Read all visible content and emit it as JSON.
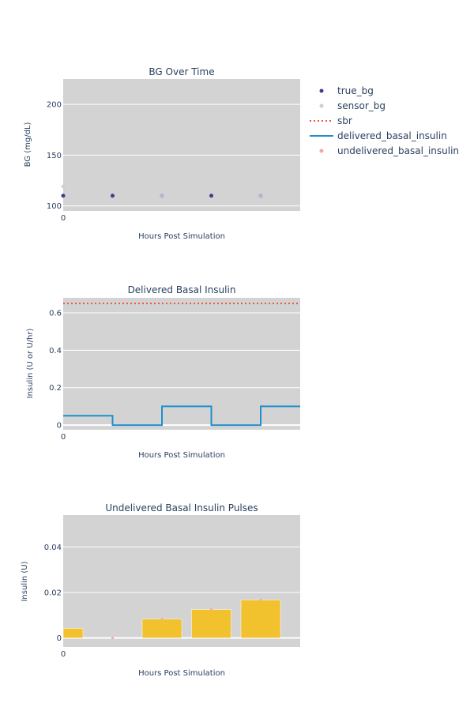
{
  "chart_data": [
    {
      "id": "bg",
      "type": "scatter",
      "title": "BG Over Time",
      "xlabel": "Hours Post Simulation",
      "ylabel": "BG (mg/dL)",
      "xlim": [
        0,
        4.8
      ],
      "ylim": [
        95,
        225
      ],
      "xticks": [
        0
      ],
      "yticks": [
        100,
        150,
        200
      ],
      "grid": true,
      "series": [
        {
          "name": "true_bg",
          "kind": "markers",
          "color": "#3d3d8f",
          "x": [
            0,
            1,
            2,
            3,
            4
          ],
          "y": [
            110,
            110,
            110,
            110,
            110
          ]
        },
        {
          "name": "sensor_bg",
          "kind": "markers",
          "color": "#c8cdd8",
          "x": [
            0,
            2,
            4
          ],
          "y": [
            119,
            110,
            110
          ]
        }
      ]
    },
    {
      "id": "basal",
      "type": "line",
      "title": "Delivered Basal Insulin",
      "xlabel": "Hours Post Simulation",
      "ylabel": "Insulin (U or U/hr)",
      "xlim": [
        0,
        4.8
      ],
      "ylim": [
        -0.025,
        0.68
      ],
      "xticks": [
        0
      ],
      "yticks": [
        0,
        0.2,
        0.4,
        0.6
      ],
      "grid": true,
      "series": [
        {
          "name": "sbr",
          "kind": "dotted",
          "color": "#ef553b",
          "x": [
            0,
            4.8
          ],
          "y": [
            0.65,
            0.65
          ]
        },
        {
          "name": "delivered_basal_insulin",
          "kind": "step",
          "color": "#1f8fd0",
          "x": [
            0,
            1,
            2,
            3,
            4,
            4.8
          ],
          "y": [
            0.05,
            0,
            0.1,
            0,
            0.1,
            0.1
          ]
        }
      ]
    },
    {
      "id": "pulses",
      "type": "bar",
      "title": "Undelivered Basal Insulin Pulses",
      "xlabel": "Hours Post Simulation",
      "ylabel": "Insulin (U)",
      "xlim": [
        0,
        4.8
      ],
      "ylim": [
        -0.004,
        0.054
      ],
      "xticks": [
        0
      ],
      "yticks": [
        0,
        0.02,
        0.04
      ],
      "grid": true,
      "bars": {
        "color": "#f2c12e",
        "x": [
          0,
          1,
          2,
          3,
          4
        ],
        "values": [
          0.0042,
          0,
          0.0083,
          0.0125,
          0.0167
        ]
      },
      "series": [
        {
          "name": "undelivered_basal_insulin",
          "kind": "markers",
          "color": "#f4a6a6",
          "x": [
            1,
            2,
            3,
            4
          ],
          "y": [
            0,
            0.0083,
            0.0125,
            0.0167
          ]
        }
      ]
    }
  ],
  "legend": {
    "position": "top-right",
    "entries": [
      {
        "name": "true_bg",
        "kind": "marker",
        "color": "#3d3d8f"
      },
      {
        "name": "sensor_bg",
        "kind": "marker",
        "color": "#c8cdd8"
      },
      {
        "name": "sbr",
        "kind": "dotted",
        "color": "#ef553b"
      },
      {
        "name": "delivered_basal_insulin",
        "kind": "line",
        "color": "#1f8fd0"
      },
      {
        "name": "undelivered_basal_insulin",
        "kind": "marker",
        "color": "#f4a6a6"
      }
    ]
  }
}
